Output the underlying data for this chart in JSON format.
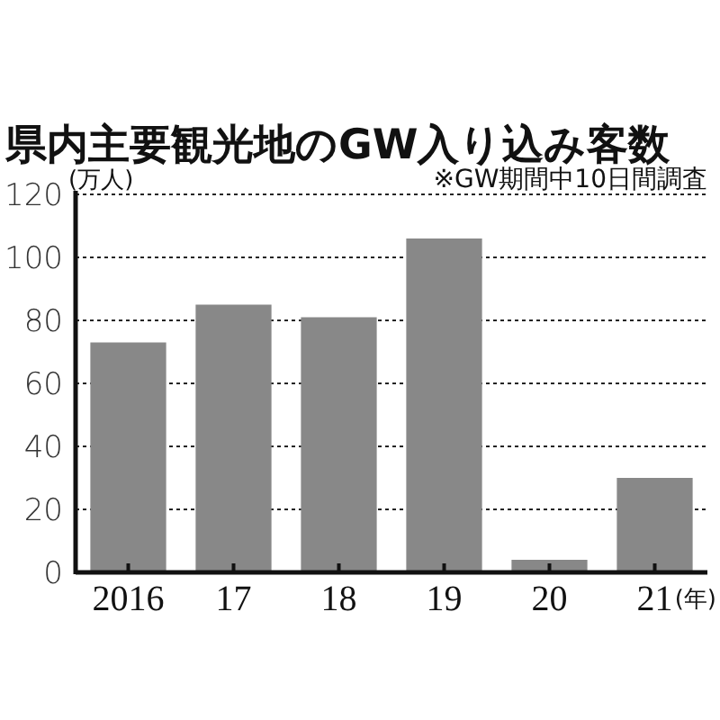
{
  "chart_data": {
    "type": "bar",
    "title": "県内主要観光地のGW入り込み客数",
    "ylabel": "(万人)",
    "xlabel": "(年)",
    "annotations": [
      "※GW期間中10日間調査"
    ],
    "categories": [
      "2016",
      "17",
      "18",
      "19",
      "20",
      "21"
    ],
    "values": [
      73,
      85,
      81,
      106,
      4,
      30
    ],
    "color": "#888888",
    "ylim": [
      0,
      120
    ],
    "yticks": [
      0,
      20,
      40,
      60,
      80,
      100,
      120
    ],
    "grid": "y"
  }
}
